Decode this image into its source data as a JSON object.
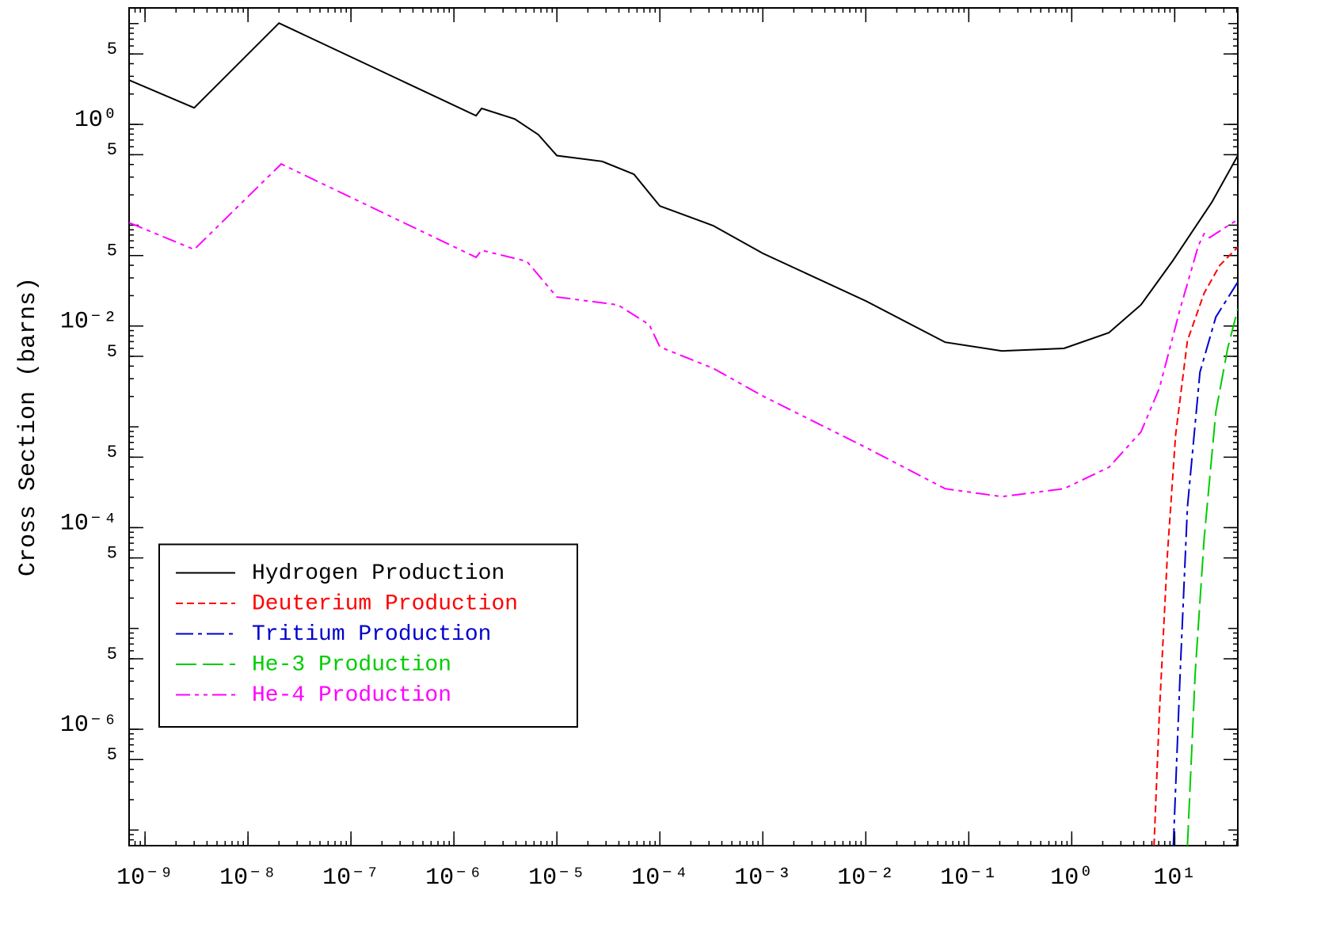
{
  "chart_data": {
    "type": "line",
    "y_label": "Cross Section (barns)",
    "xlog": true,
    "ylog": true,
    "legend": "lower left",
    "xlim": [
      7e-10,
      41
    ],
    "ylim": [
      7e-08,
      14.3
    ],
    "xticks": [
      {
        "value": 1e-09,
        "label": "10⁻⁹"
      },
      {
        "value": 1e-08,
        "label": "10⁻⁸"
      },
      {
        "value": 1e-07,
        "label": "10⁻⁷"
      },
      {
        "value": 1e-06,
        "label": "10⁻⁶"
      },
      {
        "value": 1e-05,
        "label": "10⁻⁵"
      },
      {
        "value": 0.0001,
        "label": "10⁻⁴"
      },
      {
        "value": 0.001,
        "label": "10⁻³"
      },
      {
        "value": 0.01,
        "label": "10⁻²"
      },
      {
        "value": 0.1,
        "label": "10⁻¹"
      },
      {
        "value": 1,
        "label": "10⁰"
      },
      {
        "value": 10,
        "label": "10¹"
      }
    ],
    "yticks": [
      5,
      {
        "value": 1,
        "label": "10⁰"
      },
      {
        "value": 0.5,
        "label": "5"
      },
      {
        "value": 0.05,
        "label": "5"
      },
      {
        "value": 0.01,
        "label": "10⁻²"
      },
      {
        "value": 0.005,
        "label": "5"
      },
      {
        "value": 0.0005,
        "label": "5"
      },
      {
        "value": 0.0001,
        "label": "10⁻⁴"
      },
      {
        "value": 5e-05,
        "label": "5"
      },
      {
        "value": 5e-06,
        "label": "5"
      },
      {
        "value": 1e-06,
        "label": "10⁻⁶"
      },
      {
        "value": 5e-07,
        "label": "5"
      }
    ],
    "series": [
      {
        "name": "Hydrogen Production",
        "color": "#000000",
        "dash": "solid",
        "x": [
          7e-10,
          3e-09,
          2e-08,
          1.64e-06,
          1.86e-06,
          3.9e-06,
          6.6e-06,
          1e-05,
          2.75e-05,
          5.6e-05,
          0.0001,
          0.00033,
          0.001,
          0.01,
          0.059,
          0.21,
          0.84,
          2.3,
          4.7,
          9.5,
          23,
          41
        ],
        "values": [
          2.75,
          1.46,
          10.1,
          1.22,
          1.44,
          1.13,
          0.79,
          0.49,
          0.43,
          0.32,
          0.155,
          0.099,
          0.0525,
          0.0177,
          0.0069,
          0.00566,
          0.006,
          0.0086,
          0.0162,
          0.0438,
          0.17,
          0.49
        ]
      },
      {
        "name": "Deuterium Production",
        "color": "#ff0000",
        "dash": "dashed",
        "x": [
          6.3,
          7.1,
          8.5,
          10.2,
          13.3,
          19.3,
          27.4,
          41
        ],
        "values": [
          7e-08,
          1.46e-06,
          5.4e-05,
          0.00082,
          0.00716,
          0.0212,
          0.04,
          0.0606
        ]
      },
      {
        "name": "Tritium Production",
        "color": "#0000cc",
        "dash": "dashdot",
        "x": [
          9.7,
          11.3,
          13.3,
          17.6,
          25.1,
          41
        ],
        "values": [
          7e-08,
          3.6e-06,
          0.00016,
          0.00348,
          0.0123,
          0.0273
        ]
      },
      {
        "name": "He-3 Production",
        "color": "#00cc00",
        "dash": "longdash",
        "x": [
          13.3,
          15.8,
          19.3,
          25.1,
          32.7,
          41
        ],
        "values": [
          7e-08,
          3.6e-06,
          7.8e-05,
          0.00141,
          0.006,
          0.0148
        ]
      },
      {
        "name": "He-4 Production",
        "color": "#ff00ff",
        "dash": "dashdotdot",
        "x": [
          7e-10,
          3e-09,
          2.1e-08,
          1.64e-06,
          1.86e-06,
          5.1e-06,
          1e-05,
          3.9e-05,
          7.9e-05,
          0.0001,
          0.00033,
          0.001,
          0.01,
          0.059,
          0.21,
          0.84,
          2.3,
          4.7,
          7.1,
          11.3,
          17,
          19.3,
          21.8,
          41
        ],
        "values": [
          0.106,
          0.0574,
          0.405,
          0.048,
          0.0564,
          0.0438,
          0.0194,
          0.0162,
          0.0103,
          0.0062,
          0.0038,
          0.00202,
          0.000624,
          0.000243,
          0.000203,
          0.000243,
          0.000397,
          0.00089,
          0.00242,
          0.0148,
          0.063,
          0.0824,
          0.0753,
          0.114
        ]
      }
    ]
  }
}
